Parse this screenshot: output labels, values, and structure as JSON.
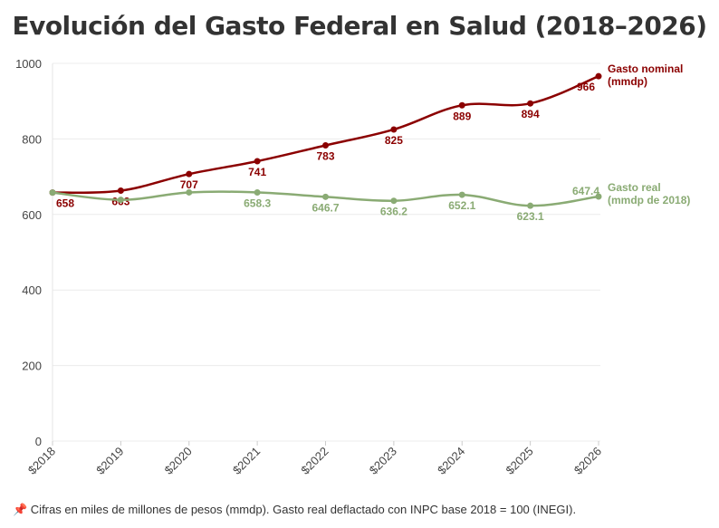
{
  "chart_data": {
    "type": "line",
    "title": "Evolución del Gasto Federal en Salud (2018–2026)",
    "categories": [
      "$2018",
      "$2019",
      "$2020",
      "$2021",
      "$2022",
      "$2023",
      "$2024",
      "$2025",
      "$2026"
    ],
    "ylim": [
      0,
      1000
    ],
    "yticks": [
      0,
      200,
      400,
      600,
      800,
      1000
    ],
    "grid": true,
    "legend": "right (end-of-line labels)",
    "series": [
      {
        "name_line1": "Gasto nominal",
        "name_line2": "(mmdp)",
        "color": "#8b0000",
        "values": [
          658,
          663,
          707,
          741,
          783,
          825,
          889,
          894,
          966
        ],
        "labels": [
          "658",
          "663",
          "707",
          "741",
          "783",
          "825",
          "889",
          "894",
          "966"
        ]
      },
      {
        "name_line1": "Gasto real",
        "name_line2": "(mmdp de 2018)",
        "color": "#8aab74",
        "values": [
          658,
          638.8,
          658.4,
          658.3,
          646.7,
          636.2,
          652.1,
          623.1,
          647.4
        ],
        "labels": [
          "",
          "",
          "",
          "658.3",
          "646.7",
          "636.2",
          "652.1",
          "623.1",
          "647.4"
        ]
      }
    ]
  },
  "footnote": "📌 Cifras en miles de millones de pesos (mmdp). Gasto real deflactado con INPC base 2018 = 100 (INEGI)."
}
